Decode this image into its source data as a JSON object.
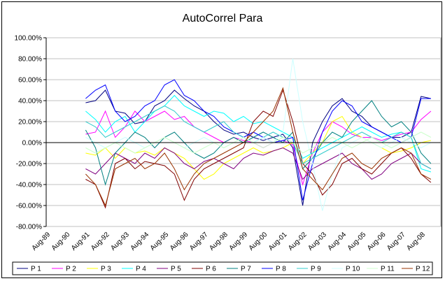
{
  "chart_data": {
    "type": "line",
    "title": "AutoCorrel Para",
    "xlabel": "",
    "ylabel": "",
    "ylim": [
      -0.8,
      1.0
    ],
    "y_ticks": [
      "100.00%",
      "80.00%",
      "60.00%",
      "40.00%",
      "20.00%",
      "0.00%",
      "-20.00%",
      "-40.00%",
      "-60.00%",
      "-80.00%"
    ],
    "x_ticks": [
      "Aug-89",
      "Aug-90",
      "Aug-91",
      "Aug-92",
      "Aug-93",
      "Aug-94",
      "Aug-95",
      "Aug-96",
      "Aug-97",
      "Aug-98",
      "Aug-99",
      "Aug-00",
      "Aug-01",
      "Aug-02",
      "Aug-03",
      "Aug-04",
      "Aug-05",
      "Aug-06",
      "Aug-07",
      "Aug-08"
    ],
    "grid": "horizontal",
    "legend_position": "bottom",
    "series": [
      {
        "name": "P 1",
        "color": "#000080",
        "x": [
          "Aug-91",
          "Feb-92",
          "Aug-92",
          "Feb-93",
          "Aug-93",
          "Feb-94",
          "Aug-94",
          "Feb-95",
          "Aug-95",
          "Feb-96",
          "Aug-96",
          "Feb-97",
          "Aug-97",
          "Feb-98",
          "Aug-98",
          "Feb-99",
          "Aug-99",
          "Feb-00",
          "Aug-00",
          "Feb-01",
          "Aug-01",
          "Feb-02",
          "Aug-02",
          "Feb-03",
          "Aug-03",
          "Feb-04",
          "Aug-04",
          "Feb-05",
          "Aug-05",
          "Feb-06",
          "Aug-06",
          "Feb-07",
          "Aug-07",
          "Feb-08",
          "Aug-08",
          "Feb-09"
        ],
        "values": [
          0.38,
          0.4,
          0.5,
          0.3,
          0.28,
          0.18,
          0.2,
          0.35,
          0.4,
          0.5,
          0.42,
          0.35,
          0.3,
          0.2,
          0.12,
          0.08,
          0.1,
          0.05,
          0.02,
          0.05,
          0.08,
          -0.05,
          -0.6,
          0.0,
          0.2,
          0.35,
          0.42,
          0.3,
          0.25,
          0.15,
          0.1,
          0.05,
          0.05,
          0.1,
          0.44,
          0.42
        ]
      },
      {
        "name": "P 2",
        "color": "#FF00FF",
        "x": [
          "Aug-91",
          "Feb-92",
          "Aug-92",
          "Feb-93",
          "Aug-93",
          "Feb-94",
          "Aug-94",
          "Feb-95",
          "Aug-95",
          "Feb-96",
          "Aug-96",
          "Feb-97",
          "Aug-97",
          "Feb-98",
          "Aug-98",
          "Feb-99",
          "Aug-99",
          "Feb-00",
          "Aug-00",
          "Feb-01",
          "Aug-01",
          "Feb-02",
          "Aug-02",
          "Feb-03",
          "Aug-03",
          "Feb-04",
          "Aug-04",
          "Feb-05",
          "Aug-05",
          "Feb-06",
          "Aug-06",
          "Feb-07",
          "Aug-07",
          "Feb-08",
          "Aug-08",
          "Feb-09"
        ],
        "values": [
          0.08,
          0.1,
          0.3,
          0.05,
          0.15,
          0.3,
          0.2,
          0.25,
          0.3,
          0.22,
          0.25,
          0.15,
          0.1,
          0.05,
          0.0,
          0.05,
          0.02,
          0.0,
          -0.05,
          0.0,
          0.02,
          -0.02,
          -0.4,
          -0.1,
          0.1,
          0.2,
          0.15,
          0.08,
          0.05,
          0.05,
          0.02,
          0.05,
          0.08,
          0.1,
          0.22,
          0.3
        ]
      },
      {
        "name": "P 3",
        "color": "#FFFF00",
        "x": [
          "Aug-91",
          "Feb-92",
          "Aug-92",
          "Feb-93",
          "Aug-93",
          "Feb-94",
          "Aug-94",
          "Feb-95",
          "Aug-95",
          "Feb-96",
          "Aug-96",
          "Feb-97",
          "Aug-97",
          "Feb-98",
          "Aug-98",
          "Feb-99",
          "Aug-99",
          "Feb-00",
          "Aug-00",
          "Feb-01",
          "Aug-01",
          "Feb-02",
          "Aug-02",
          "Feb-03",
          "Aug-03",
          "Feb-04",
          "Aug-04",
          "Feb-05",
          "Aug-05",
          "Feb-06",
          "Aug-06",
          "Feb-07",
          "Aug-07",
          "Feb-08",
          "Aug-08",
          "Feb-09"
        ],
        "values": [
          -0.1,
          -0.12,
          -0.05,
          -0.15,
          -0.05,
          -0.1,
          -0.08,
          -0.12,
          -0.05,
          -0.1,
          -0.15,
          -0.25,
          -0.35,
          -0.3,
          -0.2,
          -0.15,
          -0.1,
          -0.05,
          -0.1,
          -0.08,
          -0.05,
          0.0,
          -0.2,
          -0.1,
          0.0,
          0.2,
          0.25,
          0.1,
          0.05,
          0.0,
          -0.05,
          -0.1,
          -0.08,
          -0.05,
          0.0,
          0.02
        ]
      },
      {
        "name": "P 4",
        "color": "#00FFFF",
        "x": [
          "Aug-91",
          "Feb-92",
          "Aug-92",
          "Feb-93",
          "Aug-93",
          "Feb-94",
          "Aug-94",
          "Feb-95",
          "Aug-95",
          "Feb-96",
          "Aug-96",
          "Feb-97",
          "Aug-97",
          "Feb-98",
          "Aug-98",
          "Feb-99",
          "Aug-99",
          "Feb-00",
          "Aug-00",
          "Feb-01",
          "Aug-01",
          "Feb-02",
          "Aug-02",
          "Feb-03",
          "Aug-03",
          "Feb-04",
          "Aug-04",
          "Feb-05",
          "Aug-05",
          "Feb-06",
          "Aug-06",
          "Feb-07",
          "Aug-07",
          "Feb-08",
          "Aug-08",
          "Feb-09"
        ],
        "values": [
          0.3,
          0.22,
          0.1,
          0.2,
          0.25,
          0.1,
          0.2,
          0.3,
          0.35,
          0.45,
          0.35,
          0.3,
          0.25,
          0.3,
          0.28,
          0.2,
          0.25,
          0.18,
          0.2,
          0.15,
          0.1,
          0.05,
          -0.15,
          -0.1,
          -0.05,
          0.0,
          0.05,
          0.1,
          0.15,
          0.1,
          0.05,
          0.08,
          0.1,
          0.05,
          -0.25,
          -0.28
        ]
      },
      {
        "name": "P 5",
        "color": "#800080",
        "x": [
          "Aug-91",
          "Feb-92",
          "Aug-92",
          "Feb-93",
          "Aug-93",
          "Feb-94",
          "Aug-94",
          "Feb-95",
          "Aug-95",
          "Feb-96",
          "Aug-96",
          "Feb-97",
          "Aug-97",
          "Feb-98",
          "Aug-98",
          "Feb-99",
          "Aug-99",
          "Feb-00",
          "Aug-00",
          "Feb-01",
          "Aug-01",
          "Feb-02",
          "Aug-02",
          "Feb-03",
          "Aug-03",
          "Feb-04",
          "Aug-04",
          "Feb-05",
          "Aug-05",
          "Feb-06",
          "Aug-06",
          "Feb-07",
          "Aug-07",
          "Feb-08",
          "Aug-08",
          "Feb-09"
        ],
        "values": [
          -0.25,
          -0.3,
          -0.2,
          -0.1,
          -0.15,
          -0.2,
          -0.1,
          -0.15,
          -0.05,
          -0.1,
          -0.2,
          -0.25,
          -0.18,
          -0.15,
          -0.2,
          -0.25,
          -0.15,
          -0.1,
          -0.12,
          -0.08,
          -0.05,
          -0.1,
          -0.35,
          -0.25,
          -0.2,
          -0.15,
          -0.1,
          -0.2,
          -0.25,
          -0.35,
          -0.3,
          -0.2,
          -0.15,
          -0.1,
          -0.2,
          -0.25
        ]
      },
      {
        "name": "P 6",
        "color": "#800000",
        "x": [
          "Aug-91",
          "Feb-92",
          "Aug-92",
          "Feb-93",
          "Aug-93",
          "Feb-94",
          "Aug-94",
          "Feb-95",
          "Aug-95",
          "Feb-96",
          "Aug-96",
          "Feb-97",
          "Aug-97",
          "Feb-98",
          "Aug-98",
          "Feb-99",
          "Aug-99",
          "Feb-00",
          "Aug-00",
          "Feb-01",
          "Aug-01",
          "Feb-02",
          "Aug-02",
          "Feb-03",
          "Aug-03",
          "Feb-04",
          "Aug-04",
          "Feb-05",
          "Aug-05",
          "Feb-06",
          "Aug-06",
          "Feb-07",
          "Aug-07",
          "Feb-08",
          "Aug-08",
          "Feb-09"
        ],
        "values": [
          -0.35,
          -0.4,
          -0.62,
          -0.2,
          -0.15,
          -0.25,
          -0.18,
          -0.2,
          -0.22,
          -0.3,
          -0.55,
          -0.35,
          -0.25,
          -0.2,
          -0.15,
          -0.1,
          -0.05,
          0.2,
          0.3,
          0.25,
          0.5,
          0.2,
          -0.2,
          -0.3,
          -0.5,
          -0.4,
          -0.2,
          -0.15,
          -0.25,
          -0.3,
          -0.2,
          -0.1,
          -0.05,
          -0.15,
          -0.3,
          -0.38
        ]
      },
      {
        "name": "P 7",
        "color": "#008080",
        "x": [
          "Aug-91",
          "Feb-92",
          "Aug-92",
          "Feb-93",
          "Aug-93",
          "Feb-94",
          "Aug-94",
          "Feb-95",
          "Aug-95",
          "Feb-96",
          "Aug-96",
          "Feb-97",
          "Aug-97",
          "Feb-98",
          "Aug-98",
          "Feb-99",
          "Aug-99",
          "Feb-00",
          "Aug-00",
          "Feb-01",
          "Aug-01",
          "Feb-02",
          "Aug-02",
          "Feb-03",
          "Aug-03",
          "Feb-04",
          "Aug-04",
          "Feb-05",
          "Aug-05",
          "Feb-06",
          "Aug-06",
          "Feb-07",
          "Aug-07",
          "Feb-08",
          "Aug-08",
          "Feb-09"
        ],
        "values": [
          0.12,
          -0.05,
          -0.4,
          -0.1,
          0.0,
          0.1,
          0.05,
          -0.05,
          0.05,
          0.1,
          0.0,
          -0.1,
          -0.15,
          -0.1,
          0.0,
          0.05,
          0.0,
          0.05,
          0.1,
          0.05,
          0.0,
          0.1,
          -0.25,
          -0.15,
          0.0,
          0.1,
          0.05,
          0.2,
          0.3,
          0.4,
          0.25,
          0.15,
          0.2,
          0.1,
          -0.1,
          -0.2
        ]
      },
      {
        "name": "P 8",
        "color": "#0000FF",
        "x": [
          "Aug-91",
          "Feb-92",
          "Aug-92",
          "Feb-93",
          "Aug-93",
          "Feb-94",
          "Aug-94",
          "Feb-95",
          "Aug-95",
          "Feb-96",
          "Aug-96",
          "Feb-97",
          "Aug-97",
          "Feb-98",
          "Aug-98",
          "Feb-99",
          "Aug-99",
          "Feb-00",
          "Aug-00",
          "Feb-01",
          "Aug-01",
          "Feb-02",
          "Aug-02",
          "Feb-03",
          "Aug-03",
          "Feb-04",
          "Aug-04",
          "Feb-05",
          "Aug-05",
          "Feb-06",
          "Aug-06",
          "Feb-07",
          "Aug-07",
          "Feb-08",
          "Aug-08",
          "Feb-09"
        ],
        "values": [
          0.42,
          0.5,
          0.55,
          0.3,
          0.2,
          0.25,
          0.35,
          0.4,
          0.55,
          0.6,
          0.45,
          0.4,
          0.3,
          0.25,
          0.15,
          0.1,
          0.05,
          0.1,
          0.05,
          0.0,
          0.02,
          0.05,
          -0.55,
          -0.2,
          0.1,
          0.3,
          0.4,
          0.35,
          0.2,
          0.15,
          0.1,
          0.05,
          0.0,
          0.05,
          0.42,
          0.42
        ]
      },
      {
        "name": "P 9",
        "color": "#33CCCC",
        "x": [
          "Aug-91",
          "Feb-92",
          "Aug-92",
          "Feb-93",
          "Aug-93",
          "Feb-94",
          "Aug-94",
          "Feb-95",
          "Aug-95",
          "Feb-96",
          "Aug-96",
          "Feb-97",
          "Aug-97",
          "Feb-98",
          "Aug-98",
          "Feb-99",
          "Aug-99",
          "Feb-00",
          "Aug-00",
          "Feb-01",
          "Aug-01",
          "Feb-02",
          "Aug-02",
          "Feb-03",
          "Aug-03",
          "Feb-04",
          "Aug-04",
          "Feb-05",
          "Aug-05",
          "Feb-06",
          "Aug-06",
          "Feb-07",
          "Aug-07",
          "Feb-08",
          "Aug-08",
          "Feb-09"
        ],
        "values": [
          0.2,
          0.15,
          0.05,
          0.1,
          0.15,
          0.2,
          0.25,
          0.3,
          0.35,
          0.3,
          0.2,
          0.15,
          0.1,
          0.15,
          0.2,
          0.1,
          0.05,
          0.0,
          0.05,
          0.1,
          0.05,
          0.0,
          -0.2,
          -0.15,
          -0.1,
          -0.05,
          0.0,
          0.05,
          0.1,
          0.05,
          0.0,
          0.05,
          0.1,
          0.05,
          -0.2,
          -0.25
        ]
      },
      {
        "name": "P 10",
        "color": "#CCFFFF",
        "x": [
          "Aug-91",
          "Feb-92",
          "Aug-92",
          "Feb-93",
          "Aug-93",
          "Feb-94",
          "Aug-94",
          "Feb-95",
          "Aug-95",
          "Feb-96",
          "Aug-96",
          "Feb-97",
          "Aug-97",
          "Feb-98",
          "Aug-98",
          "Feb-99",
          "Aug-99",
          "Feb-00",
          "Aug-00",
          "Feb-01",
          "Aug-01",
          "Feb-02",
          "Aug-02",
          "Feb-03",
          "Aug-03",
          "Feb-04",
          "Aug-04",
          "Feb-05",
          "Aug-05",
          "Feb-06",
          "Aug-06",
          "Feb-07",
          "Aug-07",
          "Feb-08",
          "Aug-08",
          "Feb-09"
        ],
        "values": [
          0.05,
          0.0,
          -0.05,
          0.0,
          0.05,
          0.0,
          -0.05,
          0.0,
          0.05,
          0.0,
          -0.05,
          0.0,
          0.05,
          0.0,
          -0.05,
          0.0,
          0.05,
          0.0,
          0.05,
          0.0,
          0.1,
          0.8,
          0.2,
          -0.2,
          -0.65,
          -0.3,
          -0.05,
          0.0,
          0.05,
          0.0,
          -0.05,
          0.0,
          0.05,
          0.0,
          -0.05,
          0.0
        ]
      },
      {
        "name": "P 11",
        "color": "#CCFFCC",
        "x": [
          "Aug-91",
          "Feb-92",
          "Aug-92",
          "Feb-93",
          "Aug-93",
          "Feb-94",
          "Aug-94",
          "Feb-95",
          "Aug-95",
          "Feb-96",
          "Aug-96",
          "Feb-97",
          "Aug-97",
          "Feb-98",
          "Aug-98",
          "Feb-99",
          "Aug-99",
          "Feb-00",
          "Aug-00",
          "Feb-01",
          "Aug-01",
          "Feb-02",
          "Aug-02",
          "Feb-03",
          "Aug-03",
          "Feb-04",
          "Aug-04",
          "Feb-05",
          "Aug-05",
          "Feb-06",
          "Aug-06",
          "Feb-07",
          "Aug-07",
          "Feb-08",
          "Aug-08",
          "Feb-09"
        ],
        "values": [
          -0.05,
          -0.1,
          -0.05,
          0.0,
          -0.05,
          -0.1,
          -0.05,
          0.0,
          0.05,
          0.0,
          -0.05,
          -0.1,
          -0.05,
          0.0,
          -0.05,
          0.0,
          0.05,
          0.0,
          -0.05,
          0.0,
          0.05,
          0.0,
          -0.1,
          -0.05,
          0.0,
          0.05,
          0.0,
          -0.05,
          0.0,
          0.05,
          0.0,
          -0.05,
          0.0,
          0.05,
          0.1,
          0.05
        ]
      },
      {
        "name": "P 12",
        "color": "#993300",
        "x": [
          "Aug-91",
          "Feb-92",
          "Aug-92",
          "Feb-93",
          "Aug-93",
          "Feb-94",
          "Aug-94",
          "Feb-95",
          "Aug-95",
          "Feb-96",
          "Aug-96",
          "Feb-97",
          "Aug-97",
          "Feb-98",
          "Aug-98",
          "Feb-99",
          "Aug-99",
          "Feb-00",
          "Aug-00",
          "Feb-01",
          "Aug-01",
          "Feb-02",
          "Aug-02",
          "Feb-03",
          "Aug-03",
          "Feb-04",
          "Aug-04",
          "Feb-05",
          "Aug-05",
          "Feb-06",
          "Aug-06",
          "Feb-07",
          "Aug-07",
          "Feb-08",
          "Aug-08",
          "Feb-09"
        ],
        "values": [
          -0.3,
          -0.4,
          -0.6,
          -0.25,
          -0.2,
          -0.15,
          -0.25,
          -0.2,
          -0.1,
          -0.25,
          -0.45,
          -0.3,
          -0.2,
          -0.15,
          -0.1,
          -0.05,
          0.0,
          0.1,
          0.2,
          0.3,
          0.52,
          0.1,
          -0.25,
          -0.35,
          -0.45,
          -0.3,
          -0.15,
          -0.1,
          -0.2,
          -0.25,
          -0.15,
          -0.1,
          -0.05,
          -0.1,
          -0.3,
          -0.35
        ]
      }
    ]
  }
}
